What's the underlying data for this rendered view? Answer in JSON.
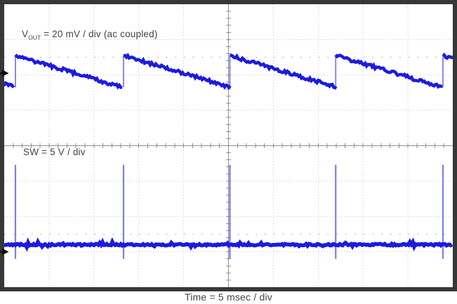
{
  "figure": {
    "labels": {
      "vout": {
        "sym": "V",
        "sub": "OUT",
        "rest": " = 20 mV / div (ac coupled)"
      },
      "sw": "SW = 5 V / div",
      "time": "Time = 5 msec / div"
    },
    "colors": {
      "trace_blue": "#1b1be0",
      "pulse_blue": "#7d7df0",
      "frame": "#373737",
      "grid_dots": "#c9c9c9",
      "axis_gray": "#8f8f8f",
      "tick_row": "#c2c2c2",
      "text": "#444444",
      "marker": "#0a0a0a"
    }
  },
  "chart_data": {
    "type": "line",
    "title": "",
    "xlabel": "Time = 5 msec / div",
    "ylabel": "",
    "x_axis": {
      "time_per_div_ms": 5,
      "divisions": 10,
      "range_ms": [
        -25,
        25
      ]
    },
    "y_axis": {
      "divisions": 8
    },
    "grid": "dotted major grid, solid center crosshair with 1/5-div minor ticks, minor tick rows at ±2.5 div",
    "legend_position": "in-plot text labels",
    "burst_period_ms": 11.9,
    "pulse_times_div": [
      0.25,
      2.66,
      5.03,
      7.39,
      9.78
    ],
    "pulse_times_ms": [
      -23.8,
      -11.7,
      0.2,
      11.9,
      23.9
    ],
    "series": [
      {
        "name": "VOUT",
        "scale_per_div": "20 mV",
        "coupling": "ac coupled",
        "ref_position_div": 2.05,
        "peak_mV": 10,
        "trough_mV": -8,
        "shape": "sawtooth: jumps to peak at each burst, linear decay to trough over the burst period"
      },
      {
        "name": "SW",
        "scale_per_div": "5 V",
        "ref_position_div": -3.0,
        "baseline_V": 1.0,
        "pulse_peak_V": 12.3,
        "pulse_min_V": -1.0,
        "shape": "flat noisy baseline with one narrow pulse per burst"
      }
    ]
  }
}
